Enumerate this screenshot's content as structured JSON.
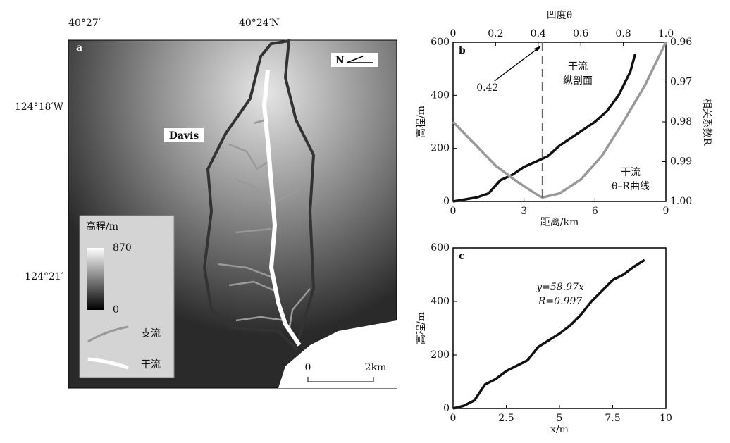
{
  "map": {
    "panel": "a",
    "lon_labels": [
      "40°27′",
      "40°24′N"
    ],
    "lat_labels": [
      "124°18′W",
      "124°21′"
    ],
    "place": "Davis",
    "north": "N",
    "legend": {
      "title": "高程/m",
      "max": 870,
      "min": 0,
      "tributary": "支流",
      "main": "干流"
    },
    "scale": [
      "0",
      "2km"
    ]
  },
  "chart_data": [
    {
      "type": "line",
      "panel": "b",
      "xlabel": "距离/km",
      "ylabel": "高程/m",
      "x2label": "凹度θ",
      "y2label": "相关系数R",
      "xlim": [
        0,
        9
      ],
      "xticks": [
        0,
        3,
        6,
        9
      ],
      "ylim": [
        0,
        600
      ],
      "yticks": [
        0,
        200,
        400,
        600
      ],
      "x2lim": [
        0,
        1
      ],
      "x2ticks": [
        0,
        0.2,
        0.4,
        0.6,
        0.8,
        {
          "value": 1,
          "label": "1.0"
        }
      ],
      "y2lim": [
        1,
        0.96
      ],
      "y2ticks": [
        {
          "value": 0.96,
          "label": "0.96"
        },
        0.97,
        0.98,
        0.99,
        {
          "value": 1,
          "label": "1.00"
        }
      ],
      "series": [
        {
          "color": "#111111",
          "x": [
            0,
            1,
            1.5,
            2,
            2.5,
            3,
            3.5,
            4,
            4.5,
            5,
            5.5,
            6,
            6.5,
            7,
            7.5,
            7.7
          ],
          "values": [
            0,
            15,
            30,
            80,
            100,
            130,
            150,
            170,
            210,
            240,
            270,
            300,
            340,
            400,
            490,
            555
          ]
        },
        {
          "color": "#999999",
          "axis": "y2",
          "xaxis": "x2",
          "x": [
            0,
            0.1,
            0.2,
            0.3,
            0.4,
            0.42,
            0.5,
            0.6,
            0.7,
            0.8,
            0.9,
            1
          ],
          "values": [
            0.98,
            0.9855,
            0.991,
            0.995,
            0.9985,
            0.999,
            0.998,
            0.9945,
            0.9885,
            0.98,
            0.971,
            0.96
          ]
        }
      ],
      "marker": {
        "value": 0.42,
        "label": "0.42"
      },
      "annotations": [
        [
          "干流",
          "纵剖面"
        ],
        [
          "干流",
          "θ–R曲线"
        ]
      ]
    },
    {
      "type": "line",
      "panel": "c",
      "xlabel": "x/m",
      "ylabel": "高程/m",
      "xlim": [
        0,
        10
      ],
      "xticks": [
        0,
        2.5,
        5,
        7.5,
        10
      ],
      "ylim": [
        0,
        600
      ],
      "yticks": [
        0,
        200,
        400,
        600
      ],
      "series": [
        {
          "color": "#111111",
          "x": [
            0,
            0.5,
            1,
            1.5,
            2,
            2.5,
            3,
            3.5,
            4,
            4.5,
            5,
            5.5,
            6,
            6.5,
            7,
            7.5,
            8,
            8.5,
            9
          ],
          "values": [
            0,
            10,
            30,
            90,
            110,
            140,
            160,
            180,
            230,
            255,
            280,
            310,
            350,
            400,
            440,
            480,
            500,
            530,
            555
          ]
        }
      ],
      "annotations": [
        [
          "y=58.97x",
          "R=0.997"
        ]
      ]
    }
  ]
}
